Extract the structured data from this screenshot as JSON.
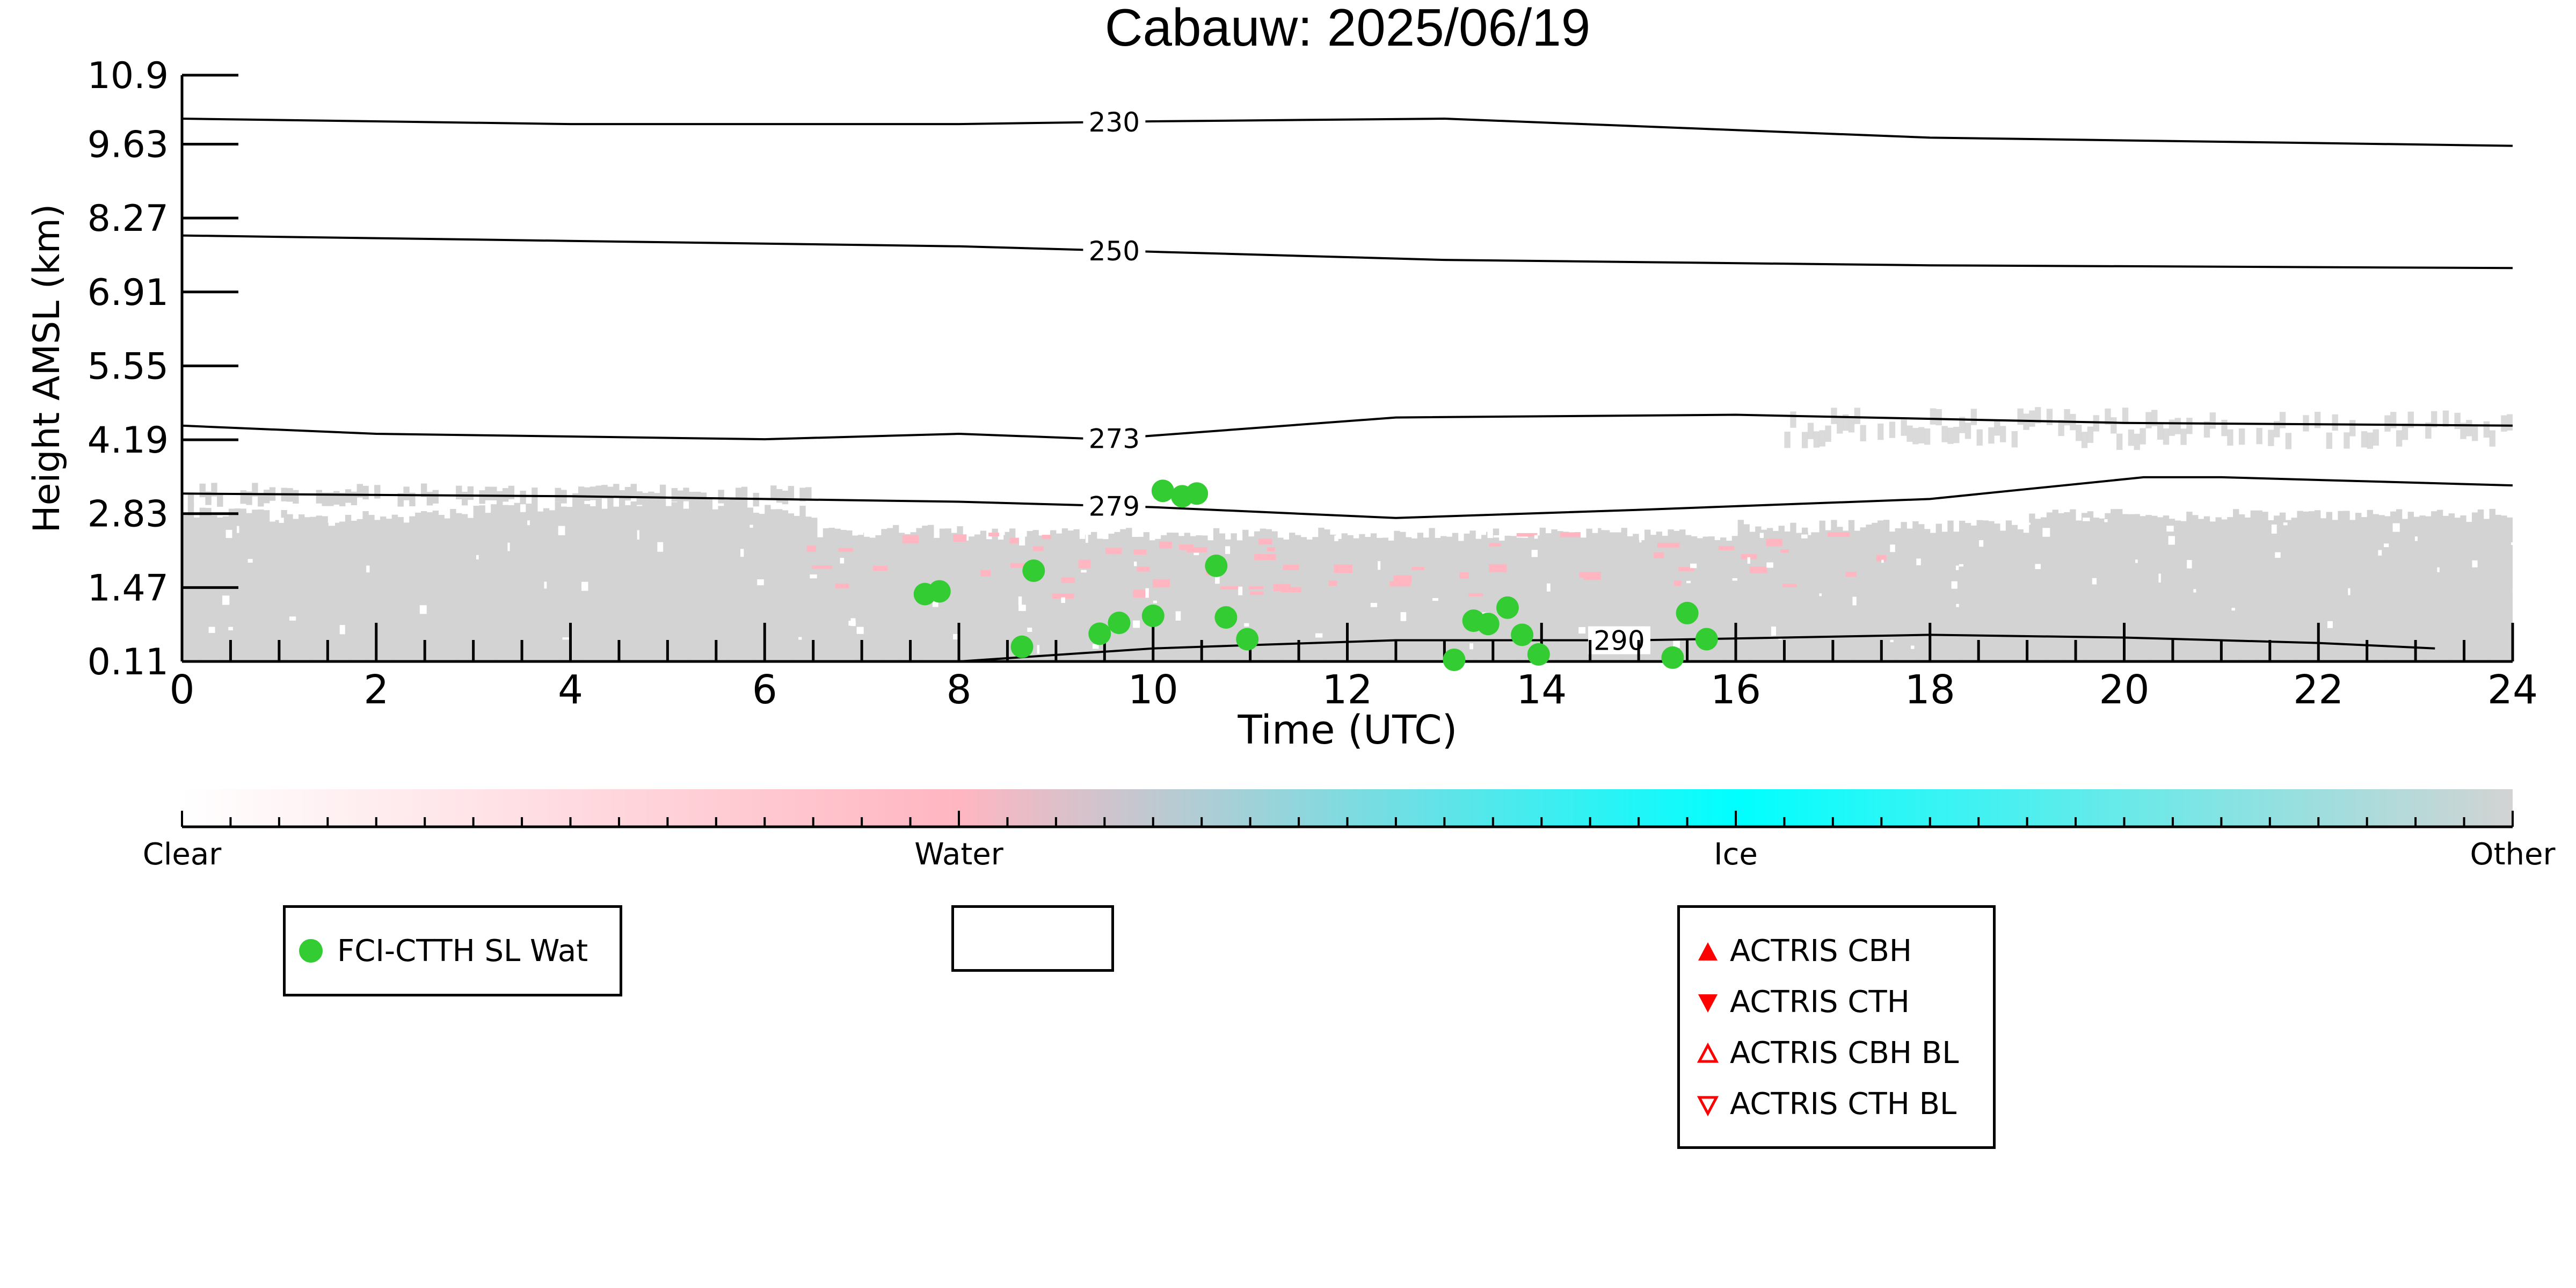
{
  "chart_data": {
    "type": "scatter",
    "title": "Cabauw: 2025/06/19",
    "xlabel": "Time (UTC)",
    "ylabel": "Height AMSL (km)",
    "xlim": [
      0,
      24
    ],
    "ylim": [
      0.11,
      10.9
    ],
    "x_ticks": [
      "0",
      "2",
      "4",
      "6",
      "8",
      "10",
      "12",
      "14",
      "16",
      "18",
      "20",
      "22",
      "24"
    ],
    "x_tick_values": [
      0,
      2,
      4,
      6,
      8,
      10,
      12,
      14,
      16,
      18,
      20,
      22,
      24
    ],
    "y_ticks": [
      "0.11",
      "1.47",
      "2.83",
      "4.19",
      "5.55",
      "6.91",
      "8.27",
      "9.63",
      "10.9"
    ],
    "y_tick_values": [
      0.11,
      1.47,
      2.83,
      4.19,
      5.55,
      6.91,
      8.27,
      9.63,
      10.9
    ],
    "grid": false,
    "temperature_contours": [
      {
        "label": "230",
        "label_x": 9.6,
        "points": [
          [
            0,
            10.1
          ],
          [
            4,
            10.0
          ],
          [
            8,
            10.0
          ],
          [
            10,
            10.05
          ],
          [
            13,
            10.1
          ],
          [
            18,
            9.75
          ],
          [
            24,
            9.6
          ]
        ]
      },
      {
        "label": "250",
        "label_x": 9.6,
        "points": [
          [
            0,
            7.95
          ],
          [
            4,
            7.85
          ],
          [
            8,
            7.75
          ],
          [
            10,
            7.65
          ],
          [
            13,
            7.5
          ],
          [
            18,
            7.4
          ],
          [
            24,
            7.35
          ]
        ]
      },
      {
        "label": "273",
        "label_x": 9.6,
        "points": [
          [
            0,
            4.45
          ],
          [
            2,
            4.3
          ],
          [
            6,
            4.2
          ],
          [
            8,
            4.3
          ],
          [
            9.5,
            4.2
          ],
          [
            12.5,
            4.6
          ],
          [
            16,
            4.65
          ],
          [
            20,
            4.5
          ],
          [
            24,
            4.45
          ]
        ]
      },
      {
        "label": "279",
        "label_x": 9.6,
        "points": [
          [
            0,
            3.2
          ],
          [
            4,
            3.15
          ],
          [
            8,
            3.05
          ],
          [
            10,
            2.95
          ],
          [
            12.5,
            2.75
          ],
          [
            15,
            2.9
          ],
          [
            18,
            3.1
          ],
          [
            20.2,
            3.5
          ],
          [
            21,
            3.5
          ],
          [
            24,
            3.35
          ]
        ]
      },
      {
        "label": "290",
        "label_x": 14.8,
        "points": [
          [
            8,
            0.11
          ],
          [
            10,
            0.35
          ],
          [
            12.5,
            0.5
          ],
          [
            15,
            0.5
          ],
          [
            18,
            0.6
          ],
          [
            20,
            0.55
          ],
          [
            22,
            0.45
          ],
          [
            23.2,
            0.35
          ]
        ]
      }
    ],
    "series": [
      {
        "name": "FCI-CTTH SL Wat",
        "color": "#33cc33",
        "marker": "circle",
        "x": [
          7.65,
          7.8,
          8.65,
          8.77,
          9.45,
          9.65,
          10.0,
          10.1,
          10.3,
          10.45,
          10.65,
          10.75,
          10.97,
          13.1,
          13.3,
          13.45,
          13.65,
          13.8,
          13.97,
          15.35,
          15.5,
          15.7
        ],
        "y": [
          1.35,
          1.4,
          0.38,
          1.78,
          0.62,
          0.82,
          0.95,
          3.25,
          3.15,
          3.2,
          1.87,
          0.92,
          0.52,
          0.14,
          0.86,
          0.8,
          1.1,
          0.6,
          0.24,
          0.18,
          1.0,
          0.52
        ]
      }
    ],
    "colorbar": {
      "labels": [
        "Clear",
        "Water",
        "Ice",
        "Other"
      ],
      "colors": [
        "#ffffff",
        "#ffb6c1",
        "#00ffff",
        "#d3d3d3"
      ]
    },
    "colors": {
      "background_field": "#d3d3d3",
      "water_patches": "#ffb6c1",
      "contour": "#000000",
      "actris_marker": "#ff0000"
    },
    "legends": [
      {
        "entries": [
          {
            "label": "FCI-CTTH SL Wat",
            "marker": "filled-circle",
            "color": "#33cc33"
          }
        ]
      },
      {
        "entries": []
      },
      {
        "entries": [
          {
            "label": "ACTRIS CBH",
            "marker": "filled-up-triangle",
            "color": "#ff0000"
          },
          {
            "label": "ACTRIS CTH",
            "marker": "filled-down-triangle",
            "color": "#ff0000"
          },
          {
            "label": "ACTRIS CBH BL",
            "marker": "open-up-triangle",
            "color": "#ff0000"
          },
          {
            "label": "ACTRIS CTH BL",
            "marker": "open-down-triangle",
            "color": "#ff0000"
          }
        ]
      }
    ]
  }
}
